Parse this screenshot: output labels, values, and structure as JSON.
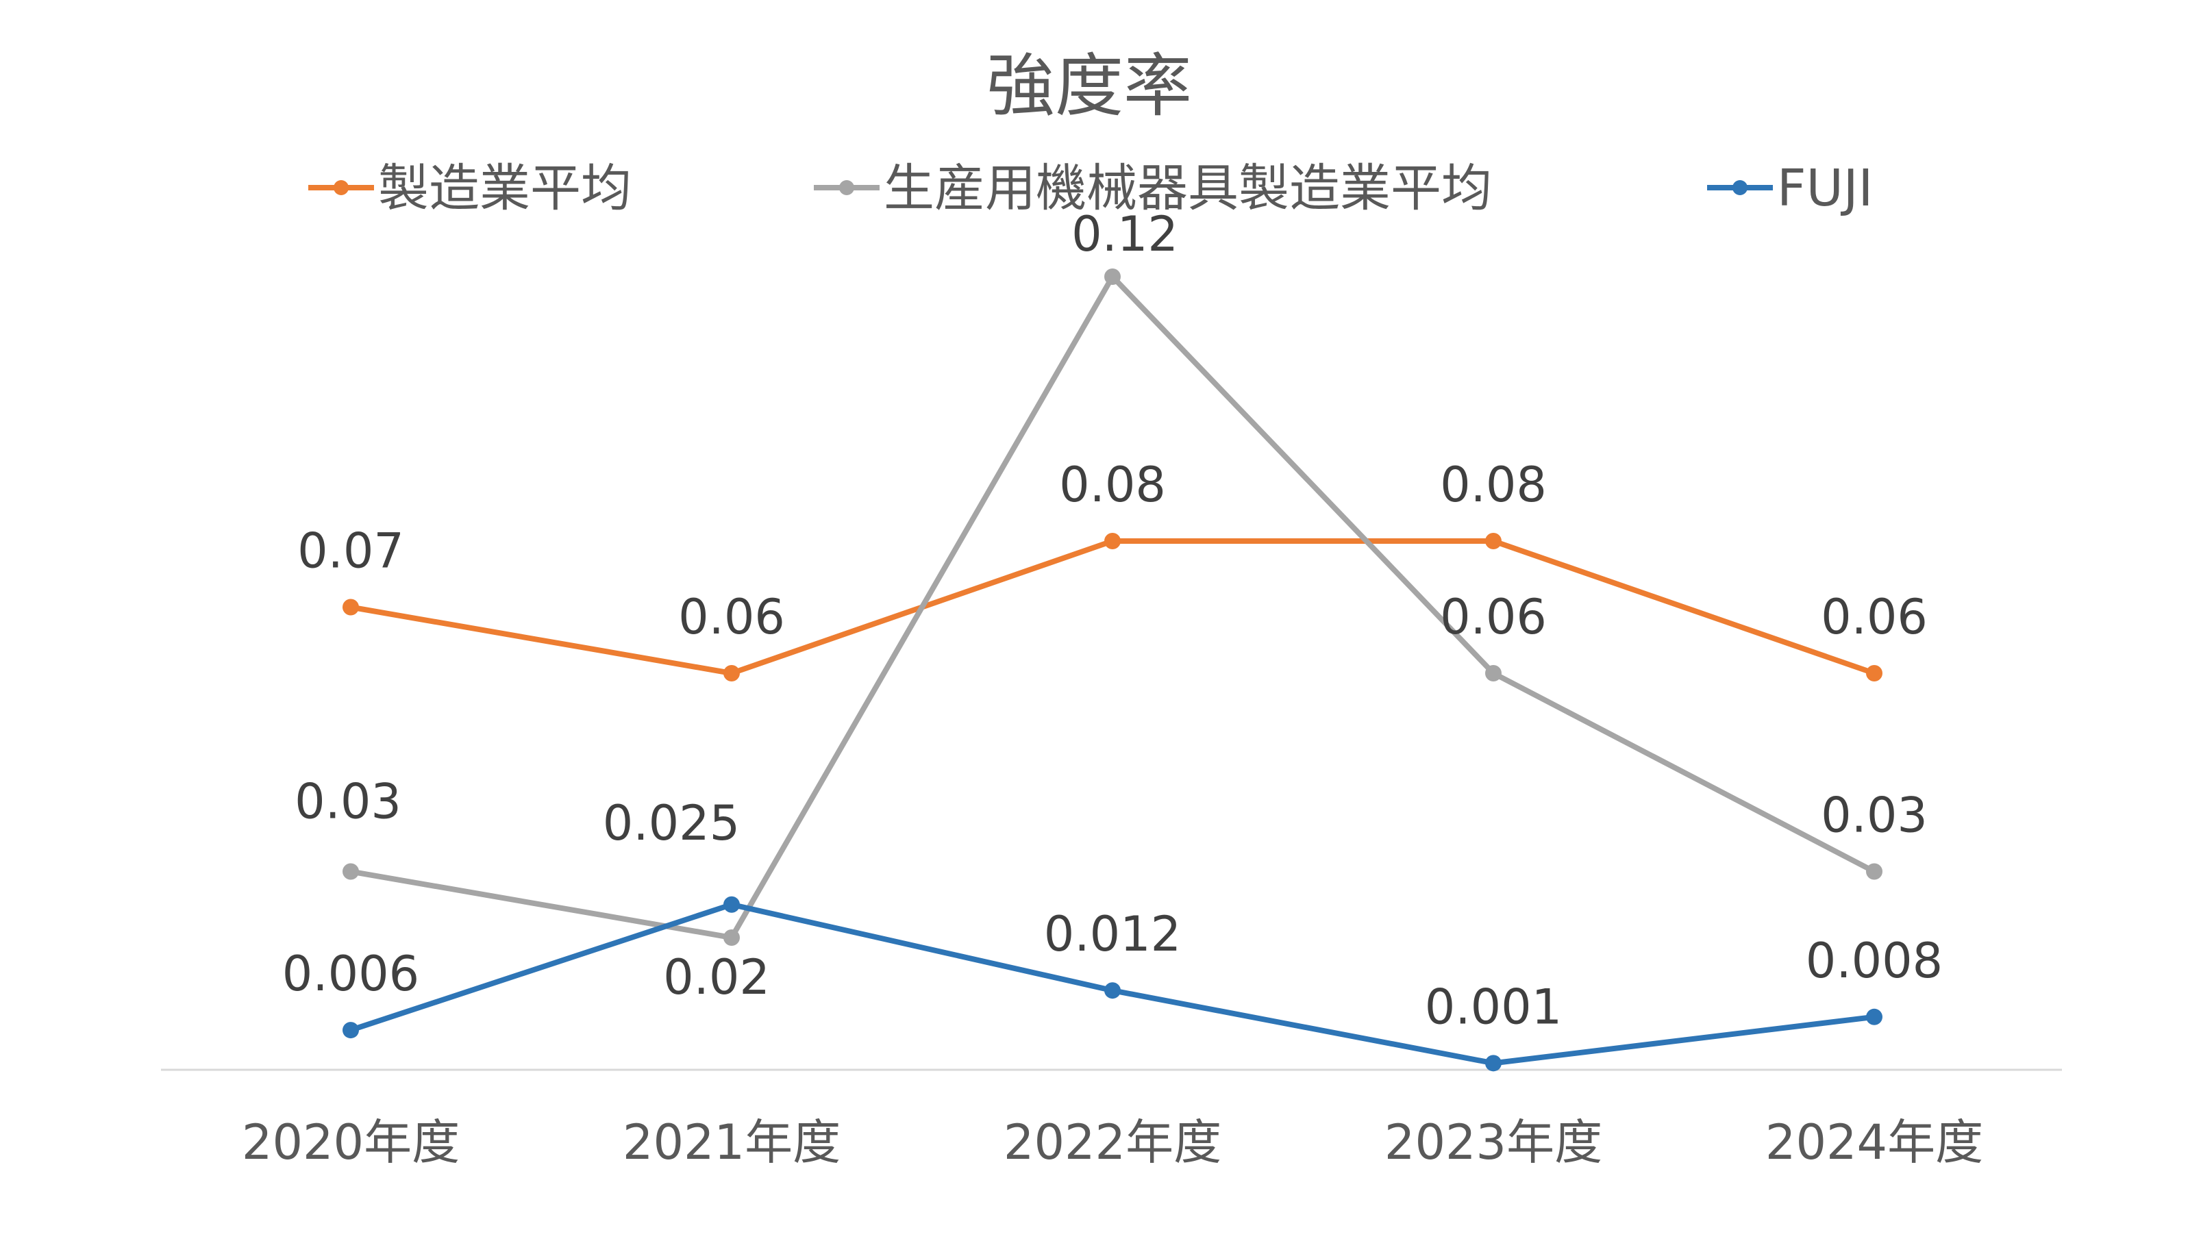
{
  "chart_data": {
    "type": "line",
    "title": "強度率",
    "xlabel": "",
    "ylabel": "",
    "categories": [
      "2020年度",
      "2021年度",
      "2022年度",
      "2023年度",
      "2024年度"
    ],
    "ylim": [
      0,
      0.13
    ],
    "grid": false,
    "legend_position": "top",
    "series": [
      {
        "name": "製造業平均",
        "color": "#ED7D31",
        "values": [
          0.07,
          0.06,
          0.08,
          0.08,
          0.06
        ],
        "labels": [
          "0.07",
          "0.06",
          "0.08",
          "0.08",
          "0.06"
        ]
      },
      {
        "name": "生産用機械器具製造業平均",
        "color": "#A5A5A5",
        "values": [
          0.03,
          0.02,
          0.12,
          0.06,
          0.03
        ],
        "labels": [
          "0.03",
          "0.02",
          "0.12",
          "0.06",
          "0.03"
        ]
      },
      {
        "name": "FUJI",
        "color": "#2E75B6",
        "values": [
          0.006,
          0.025,
          0.012,
          0.001,
          0.008
        ],
        "labels": [
          "0.006",
          "0.025",
          "0.012",
          "0.001",
          "0.008"
        ]
      }
    ]
  }
}
